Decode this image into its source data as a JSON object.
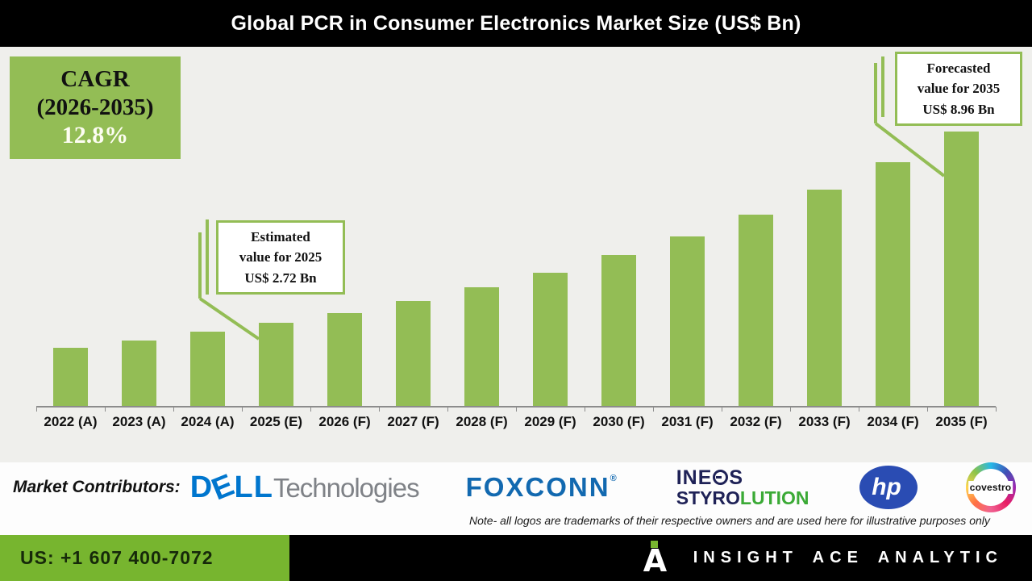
{
  "title": "Global PCR in Consumer Electronics Market Size (US$ Bn)",
  "cagr_box": {
    "line1": "CAGR",
    "line2": "(2026-2035)",
    "line3": "12.8%"
  },
  "chart_data": {
    "type": "bar",
    "title": "Global PCR in Consumer Electronics Market Size (US$ Bn)",
    "unit": "US$ Bn",
    "categories": [
      "2022 (A)",
      "2023 (A)",
      "2024 (A)",
      "2025 (E)",
      "2026 (F)",
      "2027 (F)",
      "2028 (F)",
      "2029 (F)",
      "2030 (F)",
      "2031 (F)",
      "2032 (F)",
      "2033 (F)",
      "2034 (F)",
      "2035 (F)"
    ],
    "values": [
      1.9,
      2.14,
      2.41,
      2.72,
      3.03,
      3.42,
      3.86,
      4.35,
      4.91,
      5.53,
      6.24,
      7.04,
      7.94,
      8.96
    ],
    "labeled_points": {
      "2025 (E)": 2.72,
      "2035 (F)": 8.96
    },
    "cagr_2026_2035_percent": 12.8,
    "ylim": [
      0,
      9.5
    ],
    "grid": false,
    "legend": false,
    "bar_color": "#93bd55",
    "annotations": [
      {
        "line1": "Estimated",
        "line2": "value for 2025",
        "line3": "US$ 2.72 Bn",
        "target": "2025 (E)"
      },
      {
        "line1": "Forecasted",
        "line2": "value for 2035",
        "line3": "US$ 8.96 Bn",
        "target": "2035 (F)"
      }
    ]
  },
  "contributors": {
    "label": "Market Contributors:",
    "dell": {
      "name": "Dell Technologies",
      "d": "D",
      "e": "E",
      "ll": "LL",
      "tech": "Technologies"
    },
    "foxconn": {
      "name": "Foxconn",
      "text": "FOXCONN",
      "reg": "®"
    },
    "ineos": {
      "name": "INEOS Styrolution",
      "l1a": "INE",
      "l1b": "S",
      "l2a": "STYRO",
      "l2b": "LUTION"
    },
    "hp": {
      "name": "HP",
      "text": "hp"
    },
    "covestro": {
      "name": "Covestro",
      "text": "covestro"
    }
  },
  "note": "Note- all logos are trademarks of their respective owners and are used here for illustrative purposes only",
  "footer": {
    "phone": "US: +1 607 400-7072",
    "brand": "INSIGHT ACE ANALYTIC"
  },
  "colors": {
    "bar_green": "#93bd55",
    "footer_green": "#77b52f",
    "chart_background": "#efefec",
    "dell_blue": "#0076ce",
    "dell_gray": "#7f8287",
    "foxconn_blue": "#1269b0",
    "ineos_navy": "#1f2257",
    "ineos_green": "#3baa36",
    "hp_blue": "#2a4cb3"
  }
}
